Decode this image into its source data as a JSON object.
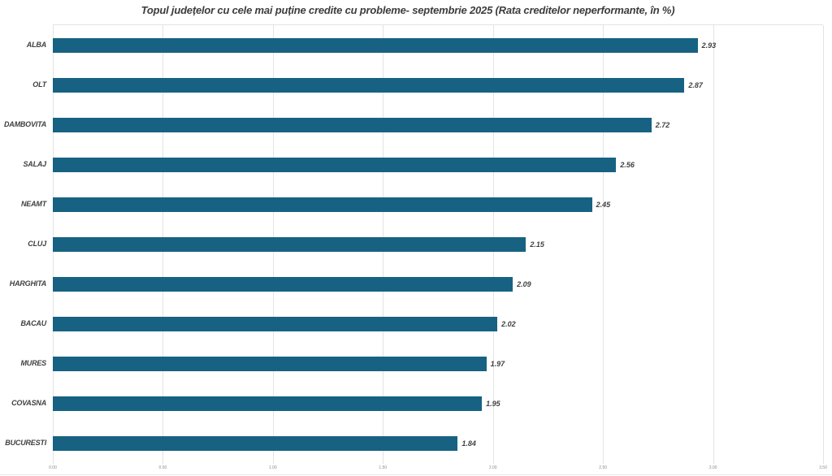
{
  "chart_data": {
    "type": "bar",
    "orientation": "horizontal",
    "title": "Topul județelor cu cele mai puține credite cu probleme- septembrie 2025 (Rata creditelor neperformante, în %)",
    "categories": [
      "ALBA",
      "OLT",
      "DAMBOVITA",
      "SALAJ",
      "NEAMT",
      "CLUJ",
      "HARGHITA",
      "BACAU",
      "MURES",
      "COVASNA",
      "BUCURESTI"
    ],
    "values": [
      2.93,
      2.87,
      2.72,
      2.56,
      2.45,
      2.15,
      2.09,
      2.02,
      1.97,
      1.95,
      1.84
    ],
    "data_labels": [
      "2.93",
      "2.87",
      "2.72",
      "2.56",
      "2.45",
      "2.15",
      "2.09",
      "2.02",
      "1.97",
      "1.95",
      "1.84"
    ],
    "xlabel": "",
    "ylabel": "",
    "xlim": [
      0,
      3.5
    ],
    "x_ticks": [
      "0.00",
      "0.50",
      "1.00",
      "1.50",
      "2.00",
      "2.50",
      "3.00",
      "3.50"
    ],
    "grid": "vertical-gridlines-on",
    "legend": "none",
    "colors": {
      "bar": "#176282",
      "title_text": "#3c3c3c",
      "label_text": "#3f3f3f",
      "gridline": "#e3e3e3",
      "tick_text": "#8c8c8c",
      "background": "#ffffff"
    }
  }
}
